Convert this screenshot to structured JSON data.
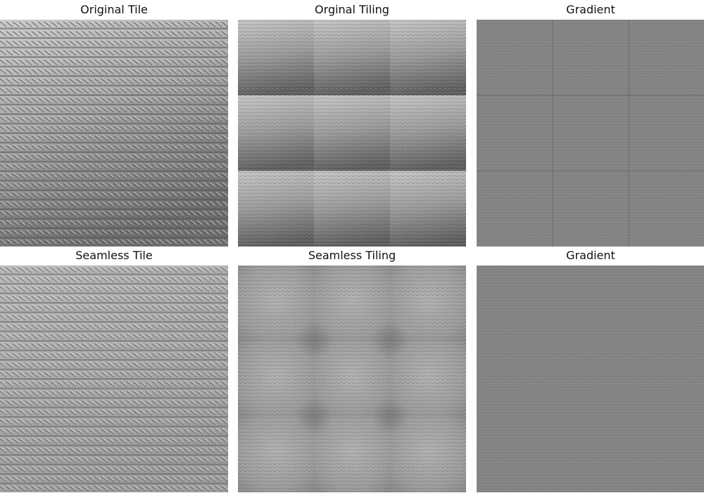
{
  "figure": {
    "background": "#ffffff",
    "panels": [
      {
        "id": "original-tile",
        "title": "Original Tile",
        "kind": "knit-tile",
        "tone": "gradient"
      },
      {
        "id": "original-tiling",
        "title": "Orginal Tiling",
        "kind": "knit-tiling",
        "tone": "gradient",
        "grid": 3
      },
      {
        "id": "original-gradient",
        "title": "Gradient",
        "kind": "gradient-map",
        "grid": 3,
        "seams": true
      },
      {
        "id": "seamless-tile",
        "title": "Seamless Tile",
        "kind": "knit-tile",
        "tone": "even"
      },
      {
        "id": "seamless-tiling",
        "title": "Seamless Tiling",
        "kind": "knit-tiling",
        "tone": "soft",
        "grid": 3
      },
      {
        "id": "seamless-gradient",
        "title": "Gradient",
        "kind": "gradient-map",
        "grid": 3,
        "seams": false
      }
    ]
  }
}
